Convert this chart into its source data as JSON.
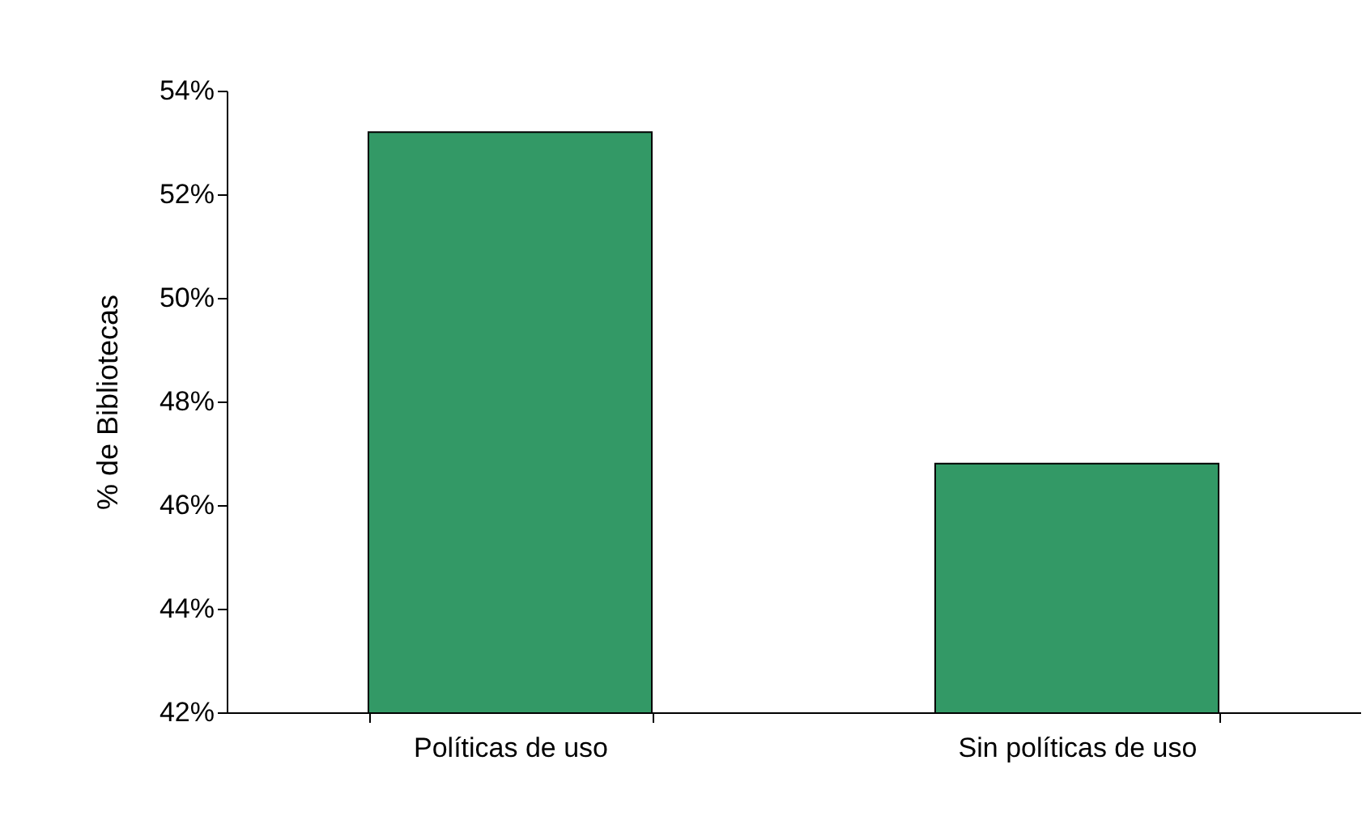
{
  "chart_data": {
    "type": "bar",
    "ylabel": "% de Bibliotecas",
    "categories": [
      "Políticas de uso",
      "Sin políticas de uso"
    ],
    "values": [
      53.2,
      46.8
    ],
    "color": "#339966",
    "ylim": [
      42,
      54
    ],
    "yticks": [
      {
        "value": 42,
        "label": "42%"
      },
      {
        "value": 44,
        "label": "44%"
      },
      {
        "value": 46,
        "label": "46%"
      },
      {
        "value": 48,
        "label": "48%"
      },
      {
        "value": 50,
        "label": "50%"
      },
      {
        "value": 52,
        "label": "52%"
      },
      {
        "value": 54,
        "label": "54%"
      }
    ],
    "grid": false
  }
}
